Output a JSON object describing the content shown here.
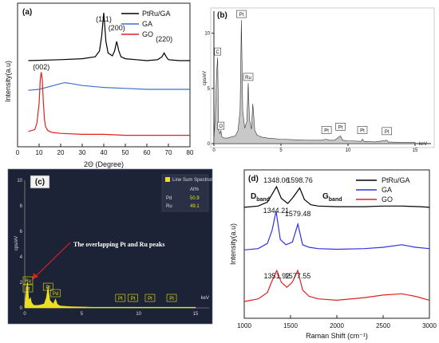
{
  "chart_data": [
    {
      "panel": "(a)",
      "type": "line",
      "xlabel": "2Θ (Degree)",
      "ylabel": "Intensity(a.u)",
      "xlim": [
        0,
        80
      ],
      "xticks": [
        "0",
        "10",
        "20",
        "30",
        "40",
        "50",
        "60",
        "70",
        "80"
      ],
      "legend_position": "top-right",
      "annotations": [
        {
          "text": "(111)",
          "x": 40
        },
        {
          "text": "(200)",
          "x": 46
        },
        {
          "text": "(220)",
          "x": 68
        },
        {
          "text": "(002)",
          "x": 11
        }
      ],
      "series": [
        {
          "name": "PtRu/GA",
          "color": "#000000",
          "x": [
            5,
            20,
            30,
            36,
            38,
            39,
            40,
            41,
            42,
            44,
            45,
            46,
            47,
            48,
            50,
            55,
            60,
            65,
            67,
            68,
            69,
            70,
            75,
            80
          ],
          "y": [
            9.0,
            9.1,
            9.2,
            9.4,
            10.0,
            11.5,
            14.0,
            11.0,
            9.8,
            9.5,
            10.0,
            11.0,
            10.0,
            9.4,
            9.2,
            9.1,
            9.0,
            9.1,
            9.4,
            9.8,
            9.4,
            9.1,
            9.0,
            9.0
          ]
        },
        {
          "name": "GA",
          "color": "#3f6fd0",
          "x": [
            5,
            10,
            15,
            20,
            22,
            25,
            30,
            40,
            50,
            60,
            70,
            80
          ],
          "y": [
            5.9,
            6.0,
            6.3,
            6.6,
            6.7,
            6.6,
            6.4,
            6.2,
            6.1,
            6.0,
            6.0,
            6.0
          ]
        },
        {
          "name": "GO",
          "color": "#e02020",
          "x": [
            5,
            8,
            9,
            10,
            10.5,
            11,
            11.5,
            12,
            12.5,
            13,
            14,
            16,
            20,
            30,
            40,
            50,
            60,
            70,
            80
          ],
          "y": [
            1.6,
            1.8,
            2.5,
            4.5,
            7.0,
            7.8,
            7.0,
            4.5,
            2.8,
            2.1,
            1.7,
            1.5,
            1.4,
            1.3,
            1.3,
            1.2,
            1.2,
            1.2,
            1.2
          ]
        }
      ]
    },
    {
      "panel": "(b)",
      "type": "bar",
      "ylabel": "cps/eV",
      "xlabel": "keV",
      "xlim": [
        0,
        15
      ],
      "ylim": [
        0,
        12
      ],
      "xticks": [
        "0",
        "5",
        "10",
        "15"
      ],
      "yticks": [
        "0",
        "5",
        "10"
      ],
      "peaks": [
        {
          "label": "C",
          "x": 0.28,
          "y": 7.8
        },
        {
          "label": "O",
          "x": 0.52,
          "y": 1.2
        },
        {
          "label": "Pt",
          "x": 2.05,
          "y": 11.2
        },
        {
          "label": "Ru",
          "x": 2.56,
          "y": 5.5
        },
        {
          "label": "Pt",
          "x": 8.4,
          "y": 0.4
        },
        {
          "label": "Pt",
          "x": 9.44,
          "y": 0.7
        },
        {
          "label": "Pt",
          "x": 11.07,
          "y": 0.4
        },
        {
          "label": "Pt",
          "x": 12.9,
          "y": 0.3
        }
      ],
      "spectrum_x": [
        0,
        0.1,
        0.2,
        0.28,
        0.35,
        0.45,
        0.52,
        0.6,
        0.8,
        1.0,
        1.3,
        1.6,
        1.8,
        1.95,
        2.05,
        2.15,
        2.3,
        2.45,
        2.56,
        2.65,
        2.8,
        2.9,
        2.95,
        3.05,
        3.2,
        3.5,
        4,
        5,
        6,
        7,
        8,
        8.4,
        8.6,
        9,
        9.44,
        9.6,
        10,
        11,
        11.07,
        11.2,
        12,
        12.9,
        13,
        14,
        15
      ],
      "spectrum_y": [
        0.5,
        2.5,
        6.5,
        7.8,
        1.2,
        0.9,
        1.2,
        0.6,
        0.5,
        0.5,
        0.6,
        0.7,
        1.2,
        3.0,
        11.2,
        3.0,
        1.4,
        2.0,
        5.5,
        2.2,
        1.3,
        3.6,
        2.8,
        1.2,
        0.8,
        0.6,
        0.5,
        0.4,
        0.35,
        0.3,
        0.3,
        0.4,
        0.3,
        0.3,
        0.7,
        0.3,
        0.25,
        0.2,
        0.4,
        0.2,
        0.15,
        0.3,
        0.15,
        0.1,
        0.1
      ]
    },
    {
      "panel": "(c)",
      "type": "bar",
      "ylabel": "cps/eV",
      "xlabel": "keV",
      "xlim": [
        0,
        15
      ],
      "ylim": [
        0,
        10
      ],
      "xticks": [
        "0",
        "5",
        "10",
        "15"
      ],
      "yticks": [
        "0",
        "2",
        "4",
        "6",
        "8",
        "10"
      ],
      "legend": "Line Sum Spectrum",
      "table": {
        "header": "At%",
        "rows": [
          {
            "el": "Pd",
            "val": "50.9"
          },
          {
            "el": "Ru",
            "val": "49.1"
          }
        ]
      },
      "annotation": "The overlapping Pt and Ru peaks",
      "labels": [
        "Ru",
        "Pt",
        "Pt",
        "Pd",
        "Pt",
        "Pt",
        "Pt",
        "Pt"
      ]
    },
    {
      "panel": "(d)",
      "type": "line",
      "xlabel": "Raman Shift (cm⁻¹)",
      "ylabel": "Intensity(a.u)",
      "xlim": [
        1000,
        3000
      ],
      "xticks": [
        "1000",
        "1500",
        "2000",
        "2500",
        "3000"
      ],
      "legend_position": "top-right",
      "band_labels": {
        "d": "D",
        "g": "G",
        "sub": "band"
      },
      "peak_labels": [
        {
          "text": "1348.06",
          "x": 1348
        },
        {
          "text": "1598.76",
          "x": 1599
        },
        {
          "text": "1344.21",
          "x": 1344
        },
        {
          "text": "1579.48",
          "x": 1579
        },
        {
          "text": "1351.92",
          "x": 1352
        },
        {
          "text": "1577.55",
          "x": 1578
        }
      ],
      "series": [
        {
          "name": "PtRu/GA",
          "color": "#000000",
          "x": [
            1000,
            1150,
            1250,
            1300,
            1348,
            1400,
            1470,
            1530,
            1599,
            1650,
            1720,
            1800,
            2000,
            2300,
            2500,
            2700,
            2900,
            3000
          ],
          "y": [
            8.6,
            8.7,
            9.0,
            9.6,
            10.2,
            9.3,
            8.9,
            9.4,
            10.1,
            9.2,
            8.8,
            8.7,
            8.65,
            8.65,
            8.7,
            8.7,
            8.65,
            8.6
          ]
        },
        {
          "name": "GA",
          "color": "#3030e0",
          "x": [
            1000,
            1150,
            1250,
            1300,
            1344,
            1390,
            1450,
            1520,
            1579,
            1630,
            1700,
            1800,
            2000,
            2300,
            2500,
            2700,
            2850,
            3000
          ],
          "y": [
            5.3,
            5.4,
            5.8,
            6.8,
            8.3,
            6.1,
            5.7,
            5.9,
            7.3,
            5.7,
            5.5,
            5.4,
            5.35,
            5.4,
            5.5,
            5.7,
            5.5,
            5.4
          ]
        },
        {
          "name": "GO",
          "color": "#e02020",
          "x": [
            1000,
            1150,
            1250,
            1300,
            1352,
            1400,
            1460,
            1520,
            1578,
            1630,
            1700,
            1800,
            2000,
            2300,
            2500,
            2700,
            2850,
            3000
          ],
          "y": [
            1.3,
            1.5,
            2.0,
            2.9,
            3.7,
            2.8,
            2.4,
            2.8,
            3.7,
            2.2,
            1.7,
            1.5,
            1.4,
            1.6,
            1.8,
            1.9,
            1.7,
            1.4
          ]
        }
      ]
    }
  ]
}
